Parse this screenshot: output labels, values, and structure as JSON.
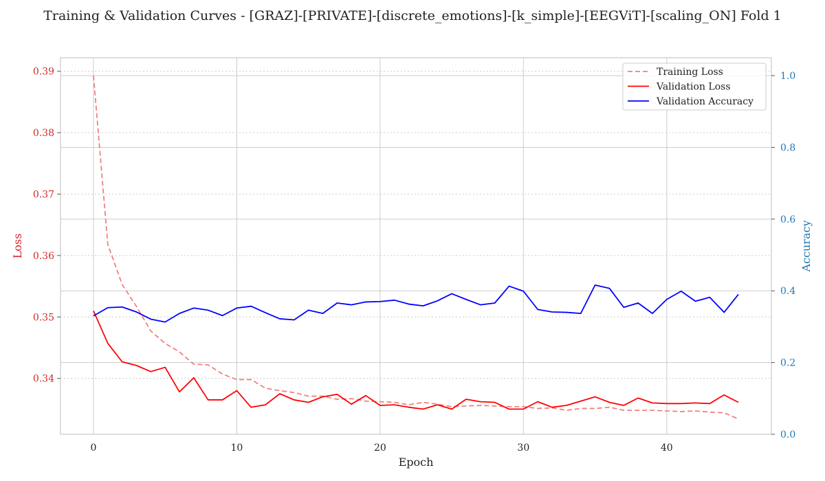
{
  "chart_data": {
    "type": "line",
    "title": "Training & Validation Curves - [GRAZ]-[PRIVATE]-[discrete_emotions]-[k_simple]-[EEGViT]-[scaling_ON] Fold 1",
    "xlabel": "Epoch",
    "ylabel_left": "Loss",
    "ylabel_right": "Accuracy",
    "x_ticks": [
      0,
      10,
      20,
      30,
      40
    ],
    "y_left_ticks": [
      0.34,
      0.35,
      0.36,
      0.37,
      0.38,
      0.39
    ],
    "y_right_ticks": [
      0.0,
      0.2,
      0.4,
      0.6,
      0.8,
      1.0
    ],
    "xlim": [
      -2.3,
      47.3
    ],
    "ylim_left": [
      0.3309,
      0.3922
    ],
    "ylim_right": [
      0.0,
      1.05
    ],
    "grid": true,
    "legend_position": "top-right",
    "colors": {
      "training_loss": "#f08080",
      "validation_loss": "#ff0000",
      "validation_accuracy": "#0000ff",
      "left_axis": "#d62728",
      "right_axis": "#1f77b4"
    },
    "x": [
      0,
      1,
      2,
      3,
      4,
      5,
      6,
      7,
      8,
      9,
      10,
      11,
      12,
      13,
      14,
      15,
      16,
      17,
      18,
      19,
      20,
      21,
      22,
      23,
      24,
      25,
      26,
      27,
      28,
      29,
      30,
      31,
      32,
      33,
      34,
      35,
      36,
      37,
      38,
      39,
      40,
      41,
      42,
      43,
      44,
      45
    ],
    "series": [
      {
        "name": "Training Loss",
        "axis": "left",
        "style": "dashed",
        "values": [
          0.3893,
          0.3618,
          0.3553,
          0.3517,
          0.3477,
          0.3457,
          0.3443,
          0.3423,
          0.3422,
          0.3407,
          0.3398,
          0.3398,
          0.3384,
          0.338,
          0.3377,
          0.3371,
          0.3371,
          0.3366,
          0.3367,
          0.3363,
          0.3362,
          0.3361,
          0.3357,
          0.3361,
          0.3358,
          0.3354,
          0.3355,
          0.3356,
          0.3355,
          0.3354,
          0.3354,
          0.3351,
          0.3352,
          0.3348,
          0.3351,
          0.3351,
          0.3353,
          0.3348,
          0.3348,
          0.3348,
          0.3347,
          0.3346,
          0.3347,
          0.3345,
          0.3344,
          0.3334
        ]
      },
      {
        "name": "Validation Loss",
        "axis": "left",
        "style": "solid",
        "values": [
          0.351,
          0.3457,
          0.3427,
          0.3421,
          0.3411,
          0.3418,
          0.3378,
          0.3401,
          0.3365,
          0.3365,
          0.338,
          0.3353,
          0.3357,
          0.3375,
          0.3365,
          0.3361,
          0.337,
          0.3374,
          0.3358,
          0.3372,
          0.3356,
          0.3357,
          0.3353,
          0.335,
          0.3357,
          0.335,
          0.3366,
          0.3362,
          0.3361,
          0.335,
          0.335,
          0.3362,
          0.3353,
          0.3356,
          0.3363,
          0.337,
          0.3361,
          0.3356,
          0.3368,
          0.336,
          0.3359,
          0.3359,
          0.336,
          0.3359,
          0.3373,
          0.3361
        ]
      },
      {
        "name": "Validation Accuracy",
        "axis": "right",
        "style": "solid",
        "values": [
          0.33,
          0.353,
          0.355,
          0.341,
          0.321,
          0.313,
          0.337,
          0.352,
          0.346,
          0.331,
          0.352,
          0.357,
          0.339,
          0.322,
          0.319,
          0.346,
          0.337,
          0.366,
          0.361,
          0.369,
          0.37,
          0.374,
          0.363,
          0.358,
          0.372,
          0.392,
          0.376,
          0.361,
          0.366,
          0.413,
          0.399,
          0.348,
          0.341,
          0.34,
          0.337,
          0.416,
          0.407,
          0.354,
          0.366,
          0.337,
          0.376,
          0.399,
          0.371,
          0.382,
          0.34,
          0.39
        ]
      }
    ]
  }
}
